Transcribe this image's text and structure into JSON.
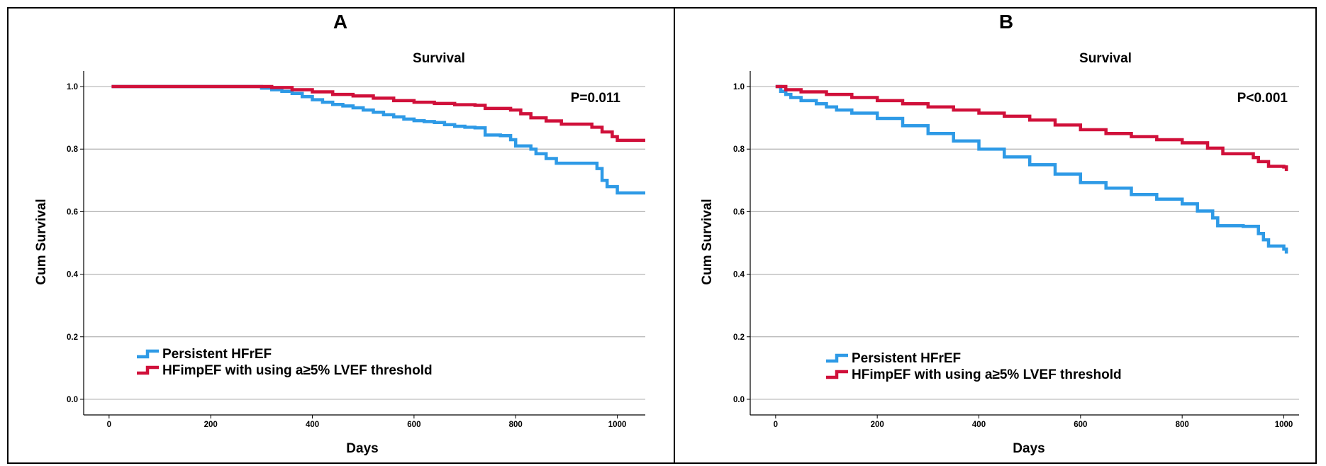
{
  "chart_data": [
    {
      "type": "line",
      "panel_label": "A",
      "title": "Survival",
      "xlabel": "Days",
      "ylabel": "Cum Survival",
      "xlim": [
        -50,
        1055
      ],
      "ylim": [
        -0.05,
        1.05
      ],
      "xticks": [
        0,
        200,
        400,
        600,
        800,
        1000
      ],
      "yticks": [
        0.0,
        0.2,
        0.4,
        0.6,
        0.8,
        1.0
      ],
      "xtick_labels": [
        "0",
        "200",
        "400",
        "600",
        "800",
        "1000"
      ],
      "ytick_labels": [
        "0.0",
        "0.2",
        "0.4",
        "0.6",
        "0.8",
        "1.0"
      ],
      "grid": "horizontal",
      "legend_position": "bottom-left",
      "annotation": "P=0.011",
      "series": [
        {
          "name": "Persistent HFrEF",
          "color": "#2e9ae6",
          "points": [
            [
              5,
              1.0
            ],
            [
              280,
              1.0
            ],
            [
              300,
              0.995
            ],
            [
              320,
              0.99
            ],
            [
              340,
              0.985
            ],
            [
              360,
              0.978
            ],
            [
              380,
              0.968
            ],
            [
              400,
              0.958
            ],
            [
              420,
              0.95
            ],
            [
              440,
              0.943
            ],
            [
              460,
              0.938
            ],
            [
              480,
              0.932
            ],
            [
              500,
              0.925
            ],
            [
              520,
              0.918
            ],
            [
              540,
              0.91
            ],
            [
              560,
              0.903
            ],
            [
              580,
              0.896
            ],
            [
              600,
              0.891
            ],
            [
              620,
              0.888
            ],
            [
              640,
              0.885
            ],
            [
              660,
              0.878
            ],
            [
              680,
              0.873
            ],
            [
              700,
              0.87
            ],
            [
              720,
              0.868
            ],
            [
              740,
              0.845
            ],
            [
              770,
              0.843
            ],
            [
              790,
              0.83
            ],
            [
              800,
              0.81
            ],
            [
              830,
              0.8
            ],
            [
              840,
              0.785
            ],
            [
              860,
              0.77
            ],
            [
              880,
              0.755
            ],
            [
              960,
              0.738
            ],
            [
              970,
              0.7
            ],
            [
              980,
              0.68
            ],
            [
              1000,
              0.66
            ],
            [
              1055,
              0.66
            ]
          ]
        },
        {
          "name": "HFimpEF with using a≥5% LVEF threshold",
          "color": "#d0103a",
          "points": [
            [
              5,
              1.0
            ],
            [
              280,
              1.0
            ],
            [
              320,
              0.997
            ],
            [
              360,
              0.99
            ],
            [
              400,
              0.983
            ],
            [
              440,
              0.975
            ],
            [
              480,
              0.97
            ],
            [
              520,
              0.963
            ],
            [
              560,
              0.955
            ],
            [
              600,
              0.95
            ],
            [
              640,
              0.946
            ],
            [
              680,
              0.942
            ],
            [
              720,
              0.94
            ],
            [
              740,
              0.93
            ],
            [
              790,
              0.925
            ],
            [
              810,
              0.913
            ],
            [
              830,
              0.9
            ],
            [
              860,
              0.89
            ],
            [
              890,
              0.88
            ],
            [
              950,
              0.87
            ],
            [
              970,
              0.855
            ],
            [
              990,
              0.84
            ],
            [
              1000,
              0.828
            ],
            [
              1055,
              0.828
            ]
          ]
        }
      ]
    },
    {
      "type": "line",
      "panel_label": "B",
      "title": "Survival",
      "xlabel": "Days",
      "ylabel": "Cum Survival",
      "xlim": [
        -50,
        1030
      ],
      "ylim": [
        -0.05,
        1.05
      ],
      "xticks": [
        0,
        200,
        400,
        600,
        800,
        1000
      ],
      "yticks": [
        0.0,
        0.2,
        0.4,
        0.6,
        0.8,
        1.0
      ],
      "xtick_labels": [
        "0",
        "200",
        "400",
        "600",
        "800",
        "1000"
      ],
      "ytick_labels": [
        "0.0",
        "0.2",
        "0.4",
        "0.6",
        "0.8",
        "1.0"
      ],
      "grid": "horizontal",
      "legend_position": "bottom-left",
      "annotation": "P<0.001",
      "series": [
        {
          "name": "Persistent HFrEF",
          "color": "#2e9ae6",
          "points": [
            [
              0,
              1.0
            ],
            [
              10,
              0.985
            ],
            [
              20,
              0.975
            ],
            [
              30,
              0.965
            ],
            [
              50,
              0.955
            ],
            [
              80,
              0.945
            ],
            [
              100,
              0.935
            ],
            [
              120,
              0.925
            ],
            [
              150,
              0.915
            ],
            [
              200,
              0.898
            ],
            [
              250,
              0.875
            ],
            [
              300,
              0.85
            ],
            [
              350,
              0.826
            ],
            [
              400,
              0.8
            ],
            [
              450,
              0.775
            ],
            [
              500,
              0.75
            ],
            [
              550,
              0.72
            ],
            [
              600,
              0.693
            ],
            [
              650,
              0.675
            ],
            [
              700,
              0.655
            ],
            [
              750,
              0.64
            ],
            [
              800,
              0.625
            ],
            [
              830,
              0.602
            ],
            [
              860,
              0.58
            ],
            [
              870,
              0.555
            ],
            [
              920,
              0.553
            ],
            [
              950,
              0.53
            ],
            [
              960,
              0.51
            ],
            [
              970,
              0.49
            ],
            [
              1000,
              0.48
            ],
            [
              1005,
              0.466
            ]
          ]
        },
        {
          "name": "HFimpEF with using a≥5% LVEF threshold",
          "color": "#d0103a",
          "points": [
            [
              0,
              1.0
            ],
            [
              20,
              0.99
            ],
            [
              50,
              0.983
            ],
            [
              100,
              0.975
            ],
            [
              150,
              0.965
            ],
            [
              200,
              0.955
            ],
            [
              250,
              0.945
            ],
            [
              300,
              0.935
            ],
            [
              350,
              0.925
            ],
            [
              400,
              0.915
            ],
            [
              450,
              0.905
            ],
            [
              500,
              0.893
            ],
            [
              550,
              0.877
            ],
            [
              600,
              0.862
            ],
            [
              650,
              0.85
            ],
            [
              700,
              0.84
            ],
            [
              750,
              0.83
            ],
            [
              800,
              0.82
            ],
            [
              850,
              0.803
            ],
            [
              880,
              0.785
            ],
            [
              940,
              0.773
            ],
            [
              950,
              0.76
            ],
            [
              970,
              0.745
            ],
            [
              1000,
              0.743
            ],
            [
              1005,
              0.73
            ]
          ]
        }
      ]
    }
  ]
}
